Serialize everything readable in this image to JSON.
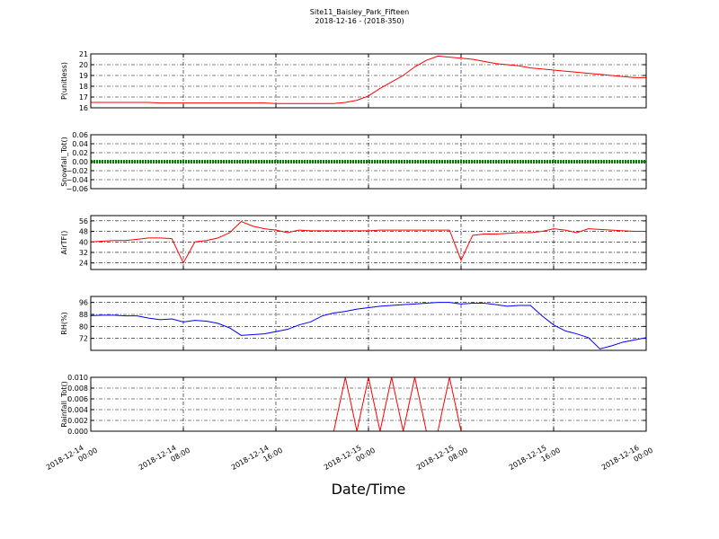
{
  "chart_data": {
    "type": "line",
    "title": "Site11_Baisley_Park_Fifteen",
    "subtitle": "2018-12-16 - (2018-350)",
    "xlabel": "Date/Time",
    "xlim": [
      "2018-12-14 00:00",
      "2018-12-16 00:00"
    ],
    "xticks": [
      {
        "value": "2018-12-14 00:00",
        "label": [
          "2018-12-14",
          "00:00"
        ]
      },
      {
        "value": "2018-12-14 08:00",
        "label": [
          "2018-12-14",
          "08:00"
        ]
      },
      {
        "value": "2018-12-14 16:00",
        "label": [
          "2018-12-14",
          "16:00"
        ]
      },
      {
        "value": "2018-12-15 00:00",
        "label": [
          "2018-12-15",
          "00:00"
        ]
      },
      {
        "value": "2018-12-15 08:00",
        "label": [
          "2018-12-15",
          "08:00"
        ]
      },
      {
        "value": "2018-12-15 16:00",
        "label": [
          "2018-12-15",
          "16:00"
        ]
      },
      {
        "value": "2018-12-16 00:00",
        "label": [
          "2018-12-16",
          "00:00"
        ]
      }
    ],
    "grid": true,
    "x": [
      "2018-12-14 00:00",
      "2018-12-14 01:00",
      "2018-12-14 02:00",
      "2018-12-14 03:00",
      "2018-12-14 04:00",
      "2018-12-14 05:00",
      "2018-12-14 06:00",
      "2018-12-14 07:00",
      "2018-12-14 08:00",
      "2018-12-14 09:00",
      "2018-12-14 10:00",
      "2018-12-14 11:00",
      "2018-12-14 12:00",
      "2018-12-14 13:00",
      "2018-12-14 14:00",
      "2018-12-14 15:00",
      "2018-12-14 16:00",
      "2018-12-14 17:00",
      "2018-12-14 18:00",
      "2018-12-14 19:00",
      "2018-12-14 20:00",
      "2018-12-14 21:00",
      "2018-12-14 22:00",
      "2018-12-14 23:00",
      "2018-12-15 00:00",
      "2018-12-15 01:00",
      "2018-12-15 02:00",
      "2018-12-15 03:00",
      "2018-12-15 04:00",
      "2018-12-15 05:00",
      "2018-12-15 06:00",
      "2018-12-15 07:00",
      "2018-12-15 08:00",
      "2018-12-15 09:00",
      "2018-12-15 10:00",
      "2018-12-15 11:00",
      "2018-12-15 12:00",
      "2018-12-15 13:00",
      "2018-12-15 14:00",
      "2018-12-15 15:00",
      "2018-12-15 16:00",
      "2018-12-15 17:00",
      "2018-12-15 18:00",
      "2018-12-15 19:00",
      "2018-12-15 20:00",
      "2018-12-15 21:00",
      "2018-12-15 22:00",
      "2018-12-15 23:00",
      "2018-12-16 00:00"
    ],
    "panels": [
      {
        "ylabel": "P(unitless)",
        "ylim": [
          16,
          21
        ],
        "yticks": [
          16,
          17,
          18,
          19,
          20,
          21
        ],
        "series": [
          {
            "color": "#ff0000",
            "values": [
              16.5,
              16.5,
              16.5,
              16.5,
              16.5,
              16.5,
              16.45,
              16.45,
              16.45,
              16.45,
              16.45,
              16.45,
              16.45,
              16.45,
              16.45,
              16.45,
              16.4,
              16.4,
              16.4,
              16.4,
              16.4,
              16.4,
              16.5,
              16.7,
              17.1,
              17.8,
              18.4,
              19.0,
              19.8,
              20.4,
              20.8,
              20.7,
              20.6,
              20.5,
              20.3,
              20.1,
              20.0,
              19.9,
              19.7,
              19.6,
              19.5,
              19.4,
              19.3,
              19.2,
              19.1,
              19.0,
              18.9,
              18.8,
              18.8
            ]
          }
        ]
      },
      {
        "ylabel": "Snowfall_Tot()",
        "ylim": [
          -0.06,
          0.06
        ],
        "yticks": [
          {
            "value": -0.06,
            "label": "−0.06"
          },
          {
            "value": -0.04,
            "label": "−0.04"
          },
          {
            "value": -0.02,
            "label": "−0.02"
          },
          {
            "value": 0,
            "label": "0.00"
          },
          0.02,
          0.04,
          0.06
        ],
        "series": [
          {
            "color": "#008000",
            "style": "dotted",
            "values": [
              0,
              0,
              0,
              0,
              0,
              0,
              0,
              0,
              0,
              0,
              0,
              0,
              0,
              0,
              0,
              0,
              0,
              0,
              0,
              0,
              0,
              0,
              0,
              0,
              0,
              0,
              0,
              0,
              0,
              0,
              0,
              0,
              0,
              0,
              0,
              0,
              0,
              0,
              0,
              0,
              0,
              0,
              0,
              0,
              0,
              0,
              0,
              0,
              0
            ]
          }
        ]
      },
      {
        "ylabel": "AirTF()",
        "ylim": [
          19,
          60
        ],
        "yticks": [
          24,
          32,
          40,
          48,
          56
        ],
        "series": [
          {
            "color": "#ff0000",
            "values": [
              40,
              40.5,
              41,
              41,
              42,
              43,
              43,
              42.5,
              24,
              40,
              41,
              43,
              47,
              55.5,
              52,
              50,
              49,
              47,
              49,
              48.5,
              48.5,
              48.5,
              48.5,
              48.5,
              48.5,
              49,
              49,
              49,
              49,
              49,
              49,
              49,
              26,
              45,
              46,
              46,
              46.5,
              47,
              47,
              48,
              50,
              49,
              47,
              50,
              49.5,
              49,
              48.5,
              48,
              48
            ]
          }
        ]
      },
      {
        "ylabel": "RH(%)",
        "ylim": [
          64,
          100
        ],
        "yticks": [
          72,
          80,
          88,
          96
        ],
        "series": [
          {
            "color": "#0000ff",
            "values": [
              87.2,
              87.5,
              87.5,
              87,
              87,
              85.5,
              84.5,
              85,
              83,
              84,
              83.5,
              82,
              79,
              74,
              74.5,
              75,
              76.5,
              78,
              81,
              83,
              87,
              89,
              90,
              91.5,
              92.5,
              93.5,
              94,
              94.5,
              95,
              95.5,
              96,
              96,
              95,
              95.5,
              95.5,
              94.5,
              93.5,
              94,
              94,
              87,
              81,
              77,
              75,
              72.5,
              65,
              67,
              69.5,
              71,
              72.5
            ]
          }
        ]
      },
      {
        "ylabel": "Rainfall_Tot()",
        "ylim": [
          0,
          0.01
        ],
        "yticks": [
          {
            "value": 0,
            "label": "0.000"
          },
          0.002,
          0.004,
          0.006,
          0.008,
          {
            "value": 0.01,
            "label": "0.010"
          }
        ],
        "series": [
          {
            "color": "#ff0000",
            "values": [
              0,
              0,
              0,
              0,
              0,
              0,
              0,
              0,
              0,
              0,
              0,
              0,
              0,
              0,
              0,
              0,
              0,
              0,
              0,
              0,
              0,
              0,
              0.01,
              0,
              0.01,
              0,
              0.01,
              0,
              0.01,
              0,
              0,
              0.01,
              0,
              0,
              0,
              0,
              0,
              0,
              0,
              0,
              0,
              0,
              0,
              0,
              0,
              0,
              0,
              0,
              0
            ]
          }
        ]
      }
    ]
  }
}
